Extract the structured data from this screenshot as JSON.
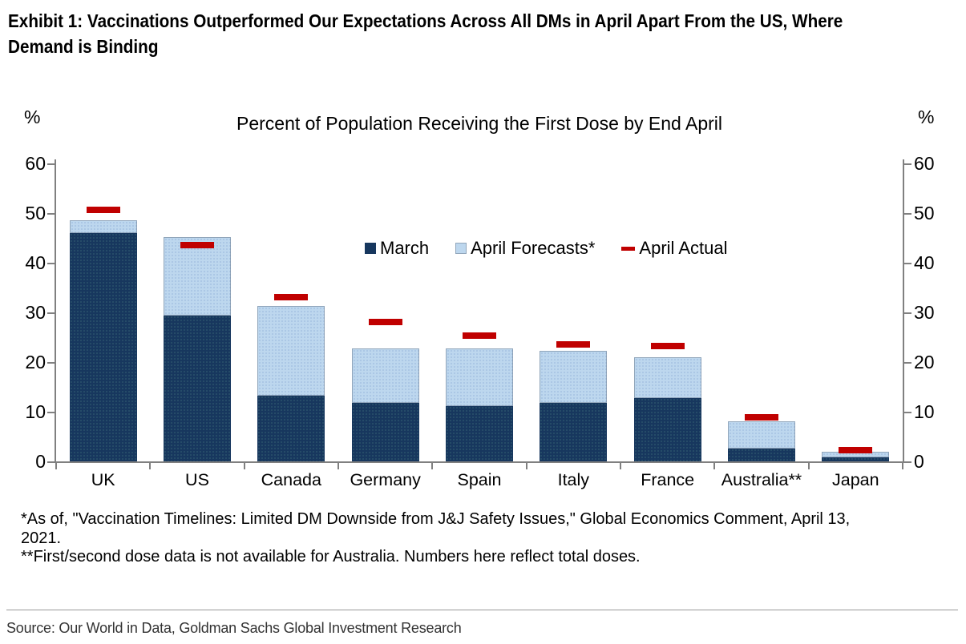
{
  "exhibit_title_lines": [
    "Exhibit 1: Vaccinations Outperformed Our Expectations Across All DMs in April Apart From the US, Where",
    "Demand is Binding"
  ],
  "chart": {
    "title": "Percent of Population Receiving the First Dose by End April",
    "unit_label_left": "%",
    "unit_label_right": "%"
  },
  "chart_data": {
    "type": "bar",
    "stacked": true,
    "title": "Percent of Population Receiving the First Dose by End April",
    "categories": [
      "UK",
      "US",
      "Canada",
      "Germany",
      "Spain",
      "Italy",
      "France",
      "Australia**",
      "Japan"
    ],
    "series": [
      {
        "name": "March",
        "type": "bar",
        "color": "#17375e",
        "values": [
          45.9,
          29.3,
          13.2,
          11.7,
          11.2,
          11.7,
          12.7,
          2.6,
          0.8
        ]
      },
      {
        "name": "April Forecasts*",
        "type": "bar",
        "color": "#bdd7ee",
        "values": [
          2.6,
          15.8,
          18.1,
          11.0,
          11.6,
          10.6,
          8.3,
          5.5,
          1.2
        ]
      },
      {
        "name": "April Actual",
        "type": "dash",
        "color": "#c00000",
        "values": [
          50.7,
          43.5,
          33.0,
          28.0,
          25.3,
          23.5,
          23.3,
          8.9,
          2.2
        ]
      }
    ],
    "stack_totals": [
      48.5,
      45.1,
      31.3,
      22.7,
      22.8,
      22.3,
      21.0,
      8.1,
      2.0
    ],
    "ylabel": "%",
    "ylim": [
      0,
      60
    ],
    "yticks": [
      0,
      10,
      20,
      30,
      40,
      50,
      60
    ],
    "y_axis_sides": [
      "left",
      "right"
    ],
    "grid": false,
    "legend_position": "inside-top-center",
    "axis_color": "#808080"
  },
  "footnote_lines": [
    "*As of, \"Vaccination Timelines: Limited DM Downside from J&J Safety Issues,\" Global Economics Comment, April 13,",
    "2021.",
    "**First/second dose data is not available for Australia. Numbers here reflect total doses."
  ],
  "source": "Source: Our World in Data, Goldman Sachs Global Investment Research"
}
